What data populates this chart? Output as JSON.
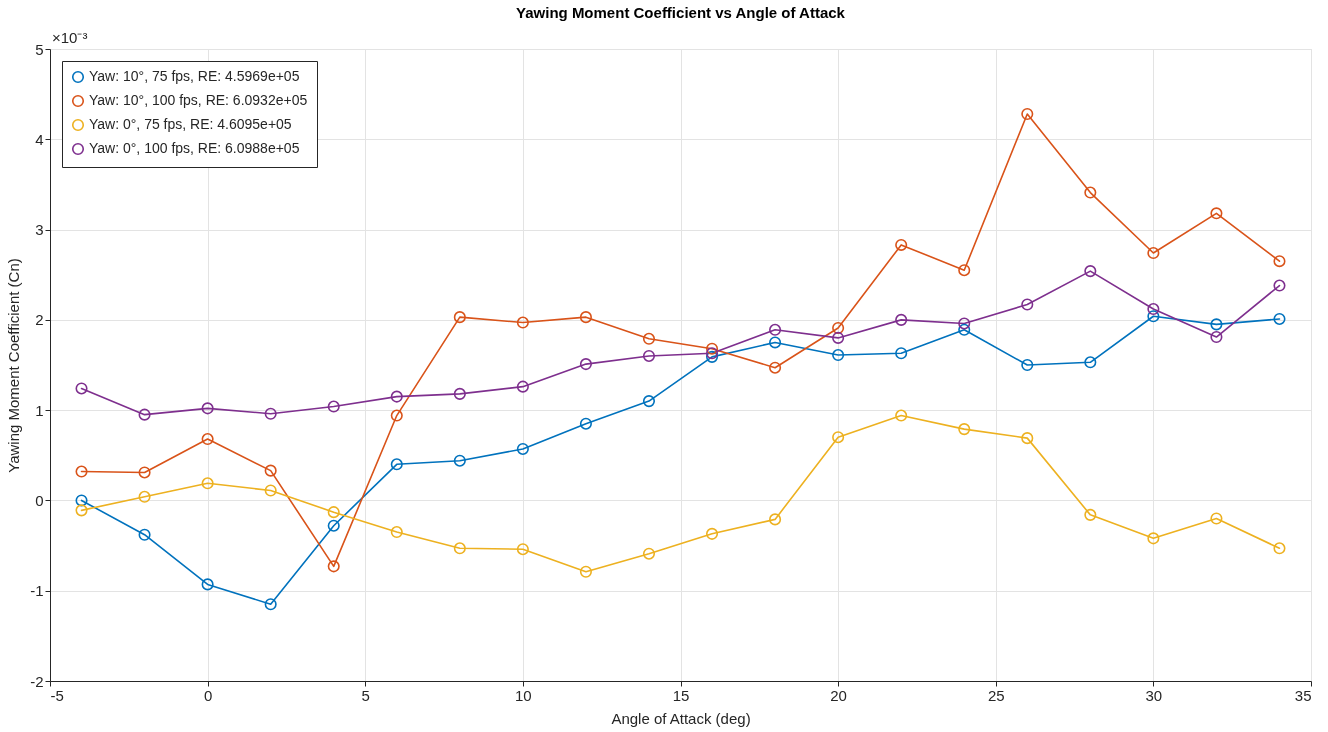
{
  "chart_data": {
    "type": "line",
    "title": "Yawing Moment Coefficient vs Angle of Attack",
    "xlabel": "Angle of Attack (deg)",
    "ylabel": "Yawing Moment Coefficient (Cn)",
    "annotations": [
      "×10⁻³"
    ],
    "x": [
      -4,
      -2,
      0,
      2,
      4,
      6,
      8,
      10,
      12,
      14,
      16,
      18,
      20,
      22,
      24,
      26,
      28,
      30,
      32,
      34
    ],
    "series": [
      {
        "name": "Yaw: 10°, 75 fps, RE: 4.5969e+05",
        "color": "#0072bd",
        "values": [
          0.0,
          -0.38,
          -0.93,
          -1.15,
          -0.28,
          0.4,
          0.44,
          0.57,
          0.85,
          1.1,
          1.59,
          1.75,
          1.61,
          1.63,
          1.89,
          1.5,
          1.53,
          2.04,
          1.95,
          2.01
        ]
      },
      {
        "name": "Yaw: 10°, 100 fps, RE: 6.0932e+05",
        "color": "#d95319",
        "values": [
          0.32,
          0.31,
          0.68,
          0.33,
          -0.73,
          0.94,
          2.03,
          1.97,
          2.03,
          1.79,
          1.68,
          1.47,
          1.91,
          2.83,
          2.55,
          4.28,
          3.41,
          2.74,
          3.18,
          2.65
        ]
      },
      {
        "name": "Yaw: 0°, 75 fps, RE: 4.6095e+05",
        "color": "#edb120",
        "values": [
          -0.11,
          0.04,
          0.19,
          0.11,
          -0.13,
          -0.35,
          -0.53,
          -0.54,
          -0.79,
          -0.59,
          -0.37,
          -0.21,
          0.7,
          0.94,
          0.79,
          0.69,
          -0.16,
          -0.42,
          -0.2,
          -0.53
        ]
      },
      {
        "name": "Yaw: 0°, 100 fps, RE: 6.0988e+05",
        "color": "#7e2f8e",
        "values": [
          1.24,
          0.95,
          1.02,
          0.96,
          1.04,
          1.15,
          1.18,
          1.26,
          1.51,
          1.6,
          1.63,
          1.89,
          1.8,
          2.0,
          1.96,
          2.17,
          2.54,
          2.12,
          1.81,
          2.38
        ]
      }
    ],
    "xlim": [
      -5,
      35
    ],
    "xticks": [
      -5,
      0,
      5,
      10,
      15,
      20,
      25,
      30,
      35
    ],
    "ylim": [
      -2,
      5
    ],
    "yticks": [
      -2,
      -1,
      0,
      1,
      2,
      3,
      4,
      5
    ],
    "grid": true,
    "legend": "top left",
    "marker": "circle",
    "line_style": "solid"
  }
}
